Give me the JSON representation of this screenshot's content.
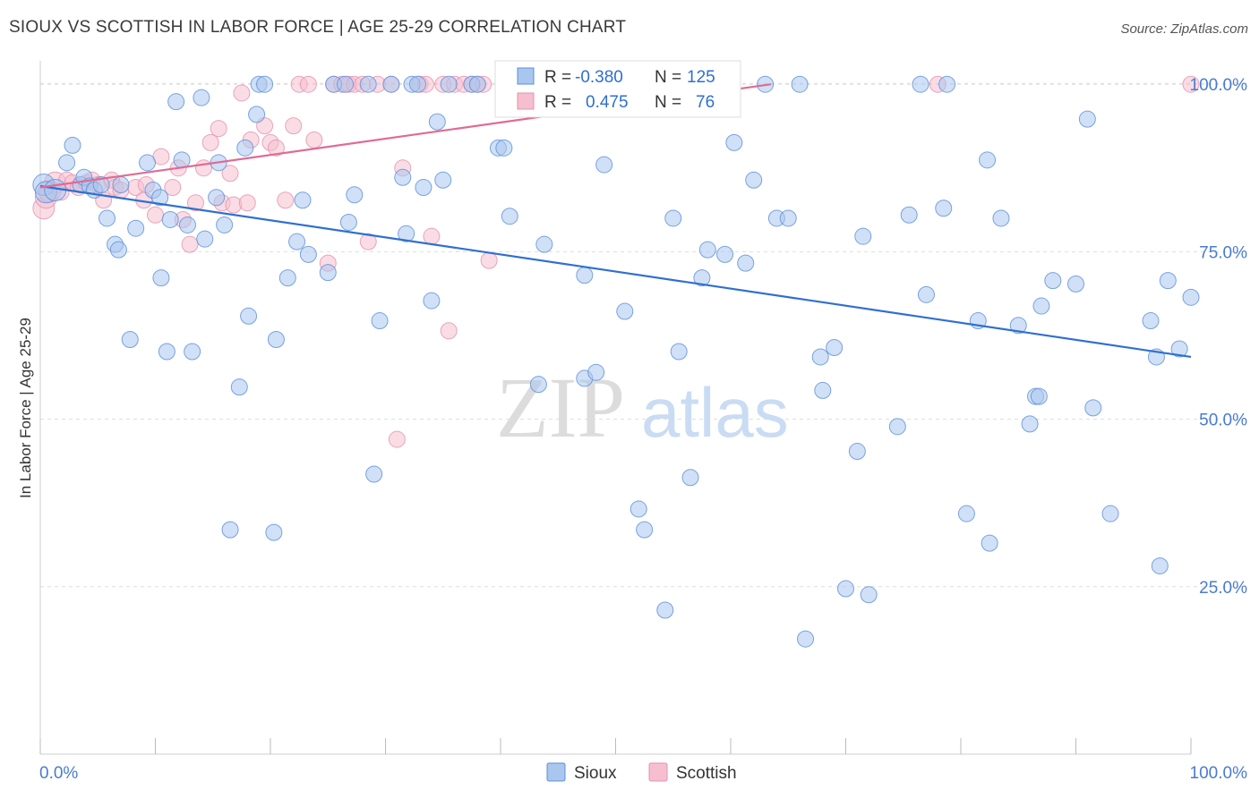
{
  "title": "SIOUX VS SCOTTISH IN LABOR FORCE | AGE 25-29 CORRELATION CHART",
  "source": "Source: ZipAtlas.com",
  "watermark": {
    "zip": "ZIP",
    "atlas": "atlas"
  },
  "colors": {
    "sioux_fill": "#a9c6ee",
    "sioux_stroke": "#5b8fd9",
    "sioux_line": "#2f6fd0",
    "scottish_fill": "#f6bfd0",
    "scottish_stroke": "#e591ad",
    "scottish_line": "#e06b94",
    "grid": "#dddddd",
    "tick_text": "#4a7bd0"
  },
  "legend_box": {
    "rows": [
      {
        "series": "Sioux",
        "r_label": "R =",
        "r_value": "-0.380",
        "n_label": "N =",
        "n_value": "125"
      },
      {
        "series": "Scottish",
        "r_label": "R =",
        "r_value": "0.475",
        "n_label": "N =",
        "n_value": "76"
      }
    ]
  },
  "chart_data": {
    "type": "scatter",
    "xlabel": "",
    "ylabel": "In Labor Force | Age 25-29",
    "xlim": [
      0,
      100
    ],
    "ylim": [
      0,
      103.5
    ],
    "x_tick_labels": [
      "0.0%",
      "100.0%"
    ],
    "y_ticks": [
      25,
      50,
      75,
      100
    ],
    "y_tick_labels": [
      "25.0%",
      "50.0%",
      "75.0%",
      "100.0%"
    ],
    "grid": true,
    "legend": [
      {
        "name": "Sioux"
      },
      {
        "name": "Scottish"
      }
    ],
    "series": [
      {
        "name": "Sioux",
        "trend": {
          "x": [
            0,
            100
          ],
          "y": [
            84.8,
            59.3
          ]
        },
        "points": [
          [
            0.3,
            85.0
          ],
          [
            0.5,
            83.9
          ],
          [
            1.3,
            84.2
          ],
          [
            2.3,
            88.3
          ],
          [
            2.8,
            90.9
          ],
          [
            3.5,
            85.0
          ],
          [
            3.8,
            86.1
          ],
          [
            4.3,
            84.8
          ],
          [
            4.7,
            84.2
          ],
          [
            5.3,
            85.0
          ],
          [
            5.8,
            80.0
          ],
          [
            6.5,
            76.1
          ],
          [
            6.8,
            75.3
          ],
          [
            7.0,
            85.0
          ],
          [
            7.8,
            61.9
          ],
          [
            8.3,
            78.5
          ],
          [
            9.3,
            88.3
          ],
          [
            9.8,
            84.2
          ],
          [
            10.4,
            83.1
          ],
          [
            10.5,
            71.1
          ],
          [
            11.0,
            60.1
          ],
          [
            11.3,
            79.8
          ],
          [
            11.8,
            97.4
          ],
          [
            12.3,
            88.7
          ],
          [
            12.8,
            79.0
          ],
          [
            13.2,
            60.1
          ],
          [
            14.0,
            98.0
          ],
          [
            14.3,
            76.9
          ],
          [
            15.3,
            83.1
          ],
          [
            15.5,
            88.3
          ],
          [
            16.0,
            79.0
          ],
          [
            16.5,
            33.5
          ],
          [
            17.3,
            54.8
          ],
          [
            17.8,
            90.5
          ],
          [
            18.1,
            65.4
          ],
          [
            18.8,
            95.5
          ],
          [
            19.0,
            100.0
          ],
          [
            19.5,
            100.0
          ],
          [
            20.3,
            33.1
          ],
          [
            20.5,
            61.9
          ],
          [
            21.5,
            71.1
          ],
          [
            22.3,
            76.5
          ],
          [
            22.8,
            82.7
          ],
          [
            23.3,
            74.6
          ],
          [
            25.0,
            71.9
          ],
          [
            25.5,
            100.0
          ],
          [
            26.5,
            100.0
          ],
          [
            26.8,
            79.4
          ],
          [
            27.3,
            83.5
          ],
          [
            28.5,
            100.0
          ],
          [
            29.0,
            41.8
          ],
          [
            29.5,
            64.7
          ],
          [
            30.5,
            100.0
          ],
          [
            31.5,
            86.1
          ],
          [
            31.8,
            77.7
          ],
          [
            32.3,
            100.0
          ],
          [
            32.8,
            100.0
          ],
          [
            33.3,
            84.6
          ],
          [
            34.0,
            67.7
          ],
          [
            34.5,
            94.4
          ],
          [
            35.0,
            85.7
          ],
          [
            35.5,
            100.0
          ],
          [
            37.5,
            100.0
          ],
          [
            38.0,
            100.0
          ],
          [
            39.8,
            90.5
          ],
          [
            40.3,
            90.5
          ],
          [
            40.8,
            80.3
          ],
          [
            43.3,
            55.2
          ],
          [
            43.8,
            76.1
          ],
          [
            47.3,
            71.5
          ],
          [
            47.3,
            56.1
          ],
          [
            48.3,
            57.0
          ],
          [
            49.0,
            88.0
          ],
          [
            50.8,
            66.1
          ],
          [
            52.0,
            36.6
          ],
          [
            52.5,
            33.5
          ],
          [
            54.3,
            21.5
          ],
          [
            55.0,
            80.0
          ],
          [
            55.5,
            60.1
          ],
          [
            56.5,
            41.3
          ],
          [
            57.5,
            71.1
          ],
          [
            59.5,
            74.6
          ],
          [
            60.3,
            91.3
          ],
          [
            61.3,
            73.3
          ],
          [
            62.0,
            85.7
          ],
          [
            63.0,
            100.0
          ],
          [
            64.0,
            80.0
          ],
          [
            65.0,
            80.0
          ],
          [
            66.0,
            100.0
          ],
          [
            66.5,
            17.2
          ],
          [
            67.8,
            59.3
          ],
          [
            68.0,
            54.3
          ],
          [
            69.0,
            60.7
          ],
          [
            70.0,
            24.7
          ],
          [
            71.0,
            45.2
          ],
          [
            71.5,
            77.3
          ],
          [
            72.0,
            23.8
          ],
          [
            74.5,
            48.9
          ],
          [
            75.5,
            80.5
          ],
          [
            76.5,
            100.0
          ],
          [
            77.0,
            68.6
          ],
          [
            78.5,
            81.5
          ],
          [
            78.8,
            100.0
          ],
          [
            80.5,
            35.9
          ],
          [
            81.5,
            64.7
          ],
          [
            82.3,
            88.7
          ],
          [
            82.5,
            31.5
          ],
          [
            83.5,
            80.0
          ],
          [
            85.0,
            64.0
          ],
          [
            86.0,
            49.3
          ],
          [
            86.5,
            53.4
          ],
          [
            86.8,
            53.4
          ],
          [
            87.0,
            66.9
          ],
          [
            88.0,
            70.7
          ],
          [
            90.0,
            70.2
          ],
          [
            91.0,
            94.8
          ],
          [
            91.5,
            51.7
          ],
          [
            93.0,
            35.9
          ],
          [
            96.5,
            64.7
          ],
          [
            97.0,
            59.3
          ],
          [
            97.3,
            28.1
          ],
          [
            98.0,
            70.7
          ],
          [
            100.0,
            68.2
          ],
          [
            99.0,
            60.5
          ],
          [
            58.0,
            75.3
          ]
        ]
      },
      {
        "name": "Scottish",
        "trend": {
          "x": [
            0,
            63.5
          ],
          "y": [
            84.6,
            100.0
          ]
        },
        "points": [
          [
            0.3,
            81.5
          ],
          [
            0.5,
            83.1
          ],
          [
            1.3,
            85.3
          ],
          [
            1.8,
            83.9
          ],
          [
            2.3,
            85.7
          ],
          [
            2.8,
            85.3
          ],
          [
            3.3,
            84.6
          ],
          [
            4.0,
            85.3
          ],
          [
            4.5,
            85.7
          ],
          [
            5.0,
            85.0
          ],
          [
            5.5,
            82.7
          ],
          [
            6.2,
            85.7
          ],
          [
            6.5,
            84.6
          ],
          [
            7.0,
            84.2
          ],
          [
            8.3,
            84.6
          ],
          [
            9.2,
            85.0
          ],
          [
            9.0,
            82.7
          ],
          [
            10.0,
            80.5
          ],
          [
            10.5,
            89.2
          ],
          [
            11.5,
            84.6
          ],
          [
            12.0,
            87.5
          ],
          [
            12.4,
            79.8
          ],
          [
            13.0,
            76.1
          ],
          [
            13.5,
            82.3
          ],
          [
            14.2,
            87.5
          ],
          [
            14.8,
            91.3
          ],
          [
            15.5,
            93.4
          ],
          [
            15.8,
            82.3
          ],
          [
            16.5,
            86.7
          ],
          [
            16.8,
            82.0
          ],
          [
            17.5,
            98.7
          ],
          [
            18.0,
            82.3
          ],
          [
            18.3,
            91.7
          ],
          [
            19.5,
            93.8
          ],
          [
            20.0,
            91.3
          ],
          [
            20.5,
            90.5
          ],
          [
            21.3,
            82.7
          ],
          [
            22.0,
            93.8
          ],
          [
            22.5,
            100.0
          ],
          [
            23.3,
            100.0
          ],
          [
            23.8,
            91.7
          ],
          [
            25.0,
            73.3
          ],
          [
            25.5,
            100.0
          ],
          [
            26.2,
            100.0
          ],
          [
            26.8,
            100.0
          ],
          [
            27.3,
            100.0
          ],
          [
            28.0,
            100.0
          ],
          [
            28.5,
            76.5
          ],
          [
            29.3,
            100.0
          ],
          [
            30.5,
            100.0
          ],
          [
            31.0,
            47.0
          ],
          [
            31.5,
            87.5
          ],
          [
            33.0,
            100.0
          ],
          [
            33.5,
            100.0
          ],
          [
            34.0,
            77.3
          ],
          [
            35.0,
            100.0
          ],
          [
            35.5,
            63.2
          ],
          [
            36.0,
            100.0
          ],
          [
            36.8,
            100.0
          ],
          [
            37.5,
            100.0
          ],
          [
            38.0,
            100.0
          ],
          [
            38.5,
            100.0
          ],
          [
            39.0,
            73.7
          ],
          [
            40.5,
            100.0
          ],
          [
            41.5,
            100.0
          ],
          [
            42.0,
            100.0
          ],
          [
            43.0,
            100.0
          ],
          [
            44.0,
            100.0
          ],
          [
            45.0,
            100.0
          ],
          [
            46.0,
            100.0
          ],
          [
            47.0,
            100.0
          ],
          [
            48.0,
            100.0
          ],
          [
            49.0,
            100.0
          ],
          [
            78.0,
            100.0
          ],
          [
            100.0,
            100.0
          ],
          [
            0.8,
            84.0
          ]
        ]
      }
    ]
  }
}
